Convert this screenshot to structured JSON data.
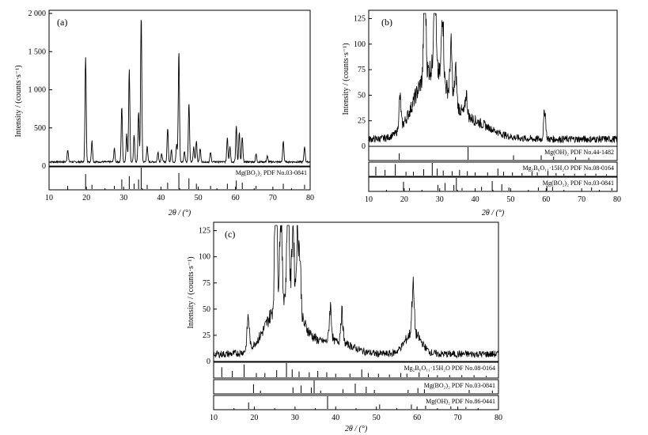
{
  "figure": {
    "panels": [
      {
        "tag": "(a)",
        "ylabel": "Intensity / (counts·s⁻¹)",
        "xlabel": "2θ / (°)",
        "xticks": [
          "10",
          "20",
          "30",
          "40",
          "50",
          "60",
          "70",
          "80"
        ],
        "yticks": [
          "0",
          "500",
          "1 000",
          "1 500",
          "2 000"
        ],
        "refs": [
          {
            "label": "Mg(BO₂)₂ PDF No.03-0841"
          }
        ]
      },
      {
        "tag": "(b)",
        "ylabel": "Intensity / (counts·s⁻¹)",
        "xlabel": "2θ / (°)",
        "xticks": [
          "10",
          "20",
          "30",
          "40",
          "50",
          "60",
          "70",
          "80"
        ],
        "yticks": [
          "0",
          "25",
          "50",
          "75",
          "100",
          "125"
        ],
        "refs": [
          {
            "label": "Mg(OH)₂ PDF No.44-1482"
          },
          {
            "label": "Mg₂B₆O₁₁·15H₂O PDF No.08-0164"
          },
          {
            "label": "Mg(BO₂)₂ PDF No.03-0841"
          }
        ]
      },
      {
        "tag": "(c)",
        "ylabel": "Intensity / (counts·s⁻¹)",
        "xlabel": "2θ / (°)",
        "xticks": [
          "10",
          "20",
          "30",
          "40",
          "50",
          "60",
          "70",
          "80"
        ],
        "yticks": [
          "0",
          "25",
          "50",
          "75",
          "100",
          "125"
        ],
        "refs": [
          {
            "label": "Mg₂B₆O₁₁·15H₂O PDF No.08-0164"
          },
          {
            "label": "Mg(BO₂)₂ PDF No.03-0841"
          },
          {
            "label": "Mg(OH)₂ PDF No.86-0441"
          }
        ]
      }
    ]
  },
  "chart_data": [
    {
      "type": "line",
      "panel": "(a)",
      "xlim": [
        10,
        80
      ],
      "ylim": [
        0,
        2000
      ],
      "background": 55,
      "peaks": [
        {
          "x": 15.0,
          "y": 220
        },
        {
          "x": 19.8,
          "y": 1420
        },
        {
          "x": 21.5,
          "y": 330
        },
        {
          "x": 27.5,
          "y": 230
        },
        {
          "x": 29.5,
          "y": 780
        },
        {
          "x": 30.8,
          "y": 420
        },
        {
          "x": 31.5,
          "y": 1280
        },
        {
          "x": 32.8,
          "y": 400
        },
        {
          "x": 34.0,
          "y": 720
        },
        {
          "x": 34.7,
          "y": 1980
        },
        {
          "x": 36.3,
          "y": 260
        },
        {
          "x": 39.2,
          "y": 190
        },
        {
          "x": 40.2,
          "y": 160
        },
        {
          "x": 41.8,
          "y": 500
        },
        {
          "x": 42.8,
          "y": 210
        },
        {
          "x": 44.2,
          "y": 280
        },
        {
          "x": 44.8,
          "y": 1510
        },
        {
          "x": 46.3,
          "y": 200
        },
        {
          "x": 47.5,
          "y": 820
        },
        {
          "x": 48.8,
          "y": 250
        },
        {
          "x": 49.5,
          "y": 330
        },
        {
          "x": 50.5,
          "y": 230
        },
        {
          "x": 53.3,
          "y": 180
        },
        {
          "x": 57.8,
          "y": 380
        },
        {
          "x": 58.5,
          "y": 260
        },
        {
          "x": 60.2,
          "y": 520
        },
        {
          "x": 61.0,
          "y": 440
        },
        {
          "x": 61.8,
          "y": 380
        },
        {
          "x": 65.5,
          "y": 160
        },
        {
          "x": 68.5,
          "y": 130
        },
        {
          "x": 72.8,
          "y": 330
        },
        {
          "x": 78.5,
          "y": 260
        }
      ],
      "reference_patterns": [
        {
          "name": "Mg(BO₂)₂ PDF No.03-0841",
          "lines": [
            [
              15,
              0.15
            ],
            [
              19.8,
              0.7
            ],
            [
              21.5,
              0.2
            ],
            [
              27.5,
              0.15
            ],
            [
              29.5,
              0.45
            ],
            [
              31.5,
              0.6
            ],
            [
              32.8,
              0.25
            ],
            [
              34,
              0.45
            ],
            [
              34.7,
              1.0
            ],
            [
              36.3,
              0.2
            ],
            [
              41.8,
              0.3
            ],
            [
              44.8,
              0.75
            ],
            [
              47.5,
              0.5
            ],
            [
              49.5,
              0.25
            ],
            [
              53.3,
              0.15
            ],
            [
              57.8,
              0.25
            ],
            [
              60.2,
              0.4
            ],
            [
              61.8,
              0.3
            ],
            [
              65.5,
              0.15
            ],
            [
              72.8,
              0.25
            ],
            [
              78.5,
              0.2
            ]
          ]
        }
      ]
    },
    {
      "type": "line",
      "panel": "(b)",
      "xlim": [
        10,
        80
      ],
      "ylim": [
        0,
        130
      ],
      "background": 7,
      "peaks": [
        {
          "x": 18.8,
          "y": 38
        },
        {
          "x": 25.8,
          "y": 118
        },
        {
          "x": 28.6,
          "y": 122
        },
        {
          "x": 30.8,
          "y": 78
        },
        {
          "x": 33.2,
          "y": 55
        },
        {
          "x": 34.5,
          "y": 40
        },
        {
          "x": 37.5,
          "y": 28
        },
        {
          "x": 59.6,
          "y": 36
        }
      ],
      "humps": [
        {
          "center": 27.5,
          "height": 65,
          "width": 4.5
        },
        {
          "center": 38.0,
          "height": 18,
          "width": 6.0
        }
      ],
      "reference_patterns": [
        {
          "name": "Mg(OH)₂ PDF No.44-1482",
          "lines": [
            [
              18.6,
              0.5
            ],
            [
              38.0,
              1.0
            ],
            [
              50.8,
              0.35
            ],
            [
              58.6,
              0.35
            ],
            [
              62.1,
              0.25
            ],
            [
              68.3,
              0.2
            ],
            [
              72.0,
              0.15
            ]
          ]
        },
        {
          "name": "Mg₂B₆O₁₁·15H₂O PDF No.08-0164",
          "lines": [
            [
              12.0,
              0.7
            ],
            [
              14.6,
              0.45
            ],
            [
              17.5,
              0.9
            ],
            [
              20.5,
              0.3
            ],
            [
              22.6,
              0.3
            ],
            [
              25.5,
              0.5
            ],
            [
              27.9,
              1.0
            ],
            [
              29.3,
              0.55
            ],
            [
              31.0,
              0.4
            ],
            [
              33.5,
              0.35
            ],
            [
              35.6,
              0.45
            ],
            [
              37.8,
              0.35
            ],
            [
              40.0,
              0.25
            ],
            [
              43.5,
              0.25
            ],
            [
              46.4,
              0.55
            ],
            [
              48.0,
              0.3
            ],
            [
              50.5,
              0.25
            ],
            [
              53.2,
              0.2
            ],
            [
              56.0,
              0.3
            ],
            [
              57.5,
              0.25
            ],
            [
              60.5,
              0.35
            ],
            [
              62.8,
              0.2
            ],
            [
              65.0,
              0.15
            ],
            [
              68.0,
              0.15
            ],
            [
              71.0,
              0.15
            ],
            [
              74.0,
              0.15
            ],
            [
              77.0,
              0.1
            ]
          ]
        },
        {
          "name": "Mg(BO₂)₂ PDF No.03-0841",
          "lines": [
            [
              19.8,
              0.7
            ],
            [
              21.5,
              0.2
            ],
            [
              29.5,
              0.45
            ],
            [
              31.5,
              0.6
            ],
            [
              34.0,
              0.45
            ],
            [
              34.7,
              1.0
            ],
            [
              36.3,
              0.2
            ],
            [
              41.8,
              0.3
            ],
            [
              44.8,
              0.75
            ],
            [
              47.5,
              0.5
            ],
            [
              49.5,
              0.25
            ],
            [
              57.8,
              0.25
            ],
            [
              60.2,
              0.4
            ],
            [
              61.8,
              0.3
            ],
            [
              72.8,
              0.25
            ],
            [
              78.5,
              0.2
            ]
          ]
        }
      ]
    },
    {
      "type": "line",
      "panel": "(c)",
      "xlim": [
        10,
        80
      ],
      "ylim": [
        0,
        130
      ],
      "background": 7,
      "peaks": [
        {
          "x": 18.5,
          "y": 38
        },
        {
          "x": 25.3,
          "y": 130
        },
        {
          "x": 26.5,
          "y": 90
        },
        {
          "x": 28.3,
          "y": 110
        },
        {
          "x": 29.5,
          "y": 85
        },
        {
          "x": 30.6,
          "y": 80
        },
        {
          "x": 31.2,
          "y": 58
        },
        {
          "x": 38.7,
          "y": 40
        },
        {
          "x": 41.5,
          "y": 35
        },
        {
          "x": 59.0,
          "y": 52
        }
      ],
      "humps": [
        {
          "center": 27.5,
          "height": 55,
          "width": 4.0
        },
        {
          "center": 59.0,
          "height": 20,
          "width": 2.0
        },
        {
          "center": 40.0,
          "height": 12,
          "width": 4.0
        }
      ],
      "reference_patterns": [
        {
          "name": "Mg₂B₆O₁₁·15H₂O PDF No.08-0164",
          "lines": [
            [
              12.0,
              0.7
            ],
            [
              14.6,
              0.45
            ],
            [
              17.5,
              0.9
            ],
            [
              20.5,
              0.3
            ],
            [
              22.6,
              0.3
            ],
            [
              25.5,
              0.5
            ],
            [
              27.9,
              1.0
            ],
            [
              29.3,
              0.55
            ],
            [
              31.0,
              0.4
            ],
            [
              33.5,
              0.35
            ],
            [
              35.6,
              0.45
            ],
            [
              37.8,
              0.35
            ],
            [
              40.0,
              0.25
            ],
            [
              43.5,
              0.25
            ],
            [
              46.4,
              0.55
            ],
            [
              48.0,
              0.3
            ],
            [
              50.5,
              0.25
            ],
            [
              53.2,
              0.2
            ],
            [
              56.0,
              0.3
            ],
            [
              57.5,
              0.25
            ],
            [
              60.5,
              0.35
            ],
            [
              62.8,
              0.2
            ],
            [
              65.0,
              0.15
            ],
            [
              68.0,
              0.15
            ],
            [
              71.0,
              0.15
            ],
            [
              74.0,
              0.15
            ],
            [
              77.0,
              0.1
            ]
          ]
        },
        {
          "name": "Mg(BO₂)₂ PDF No.03-0841",
          "lines": [
            [
              19.8,
              0.7
            ],
            [
              21.5,
              0.2
            ],
            [
              29.5,
              0.45
            ],
            [
              31.5,
              0.6
            ],
            [
              34.0,
              0.45
            ],
            [
              34.7,
              1.0
            ],
            [
              36.3,
              0.2
            ],
            [
              41.8,
              0.3
            ],
            [
              44.8,
              0.75
            ],
            [
              47.5,
              0.5
            ],
            [
              49.5,
              0.25
            ],
            [
              57.8,
              0.25
            ],
            [
              60.2,
              0.4
            ],
            [
              61.8,
              0.3
            ],
            [
              72.8,
              0.25
            ],
            [
              78.5,
              0.2
            ]
          ]
        },
        {
          "name": "Mg(OH)₂ PDF No.86-0441",
          "lines": [
            [
              18.6,
              0.5
            ],
            [
              38.0,
              1.0
            ],
            [
              50.8,
              0.35
            ],
            [
              58.6,
              0.35
            ],
            [
              62.1,
              0.25
            ],
            [
              68.3,
              0.2
            ],
            [
              72.0,
              0.15
            ]
          ]
        }
      ]
    }
  ]
}
